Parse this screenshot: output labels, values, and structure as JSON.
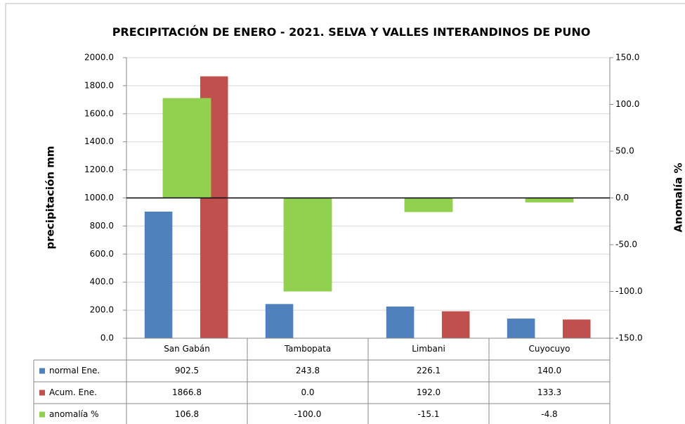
{
  "chart_data": {
    "type": "bar",
    "title": "PRECIPITACIÓN DE ENERO - 2021. SELVA Y VALLES INTERANDINOS DE PUNO",
    "y_label": "precipitación mm",
    "y2_label": "Anomalía %",
    "categories": [
      "San Gabán",
      "Tambopata",
      "Limbani",
      "Cuyocuyo"
    ],
    "series": [
      {
        "name": "normal Ene.",
        "color": "#4f81bd",
        "values": [
          902.5,
          243.8,
          226.1,
          140.0
        ],
        "value_labels": [
          "902.5",
          "243.8",
          "226.1",
          "140.0"
        ]
      },
      {
        "name": "Acum. Ene.",
        "color": "#c0504d",
        "values": [
          1866.8,
          0.0,
          192.0,
          133.3
        ],
        "value_labels": [
          "1866.8",
          "0.0",
          "192.0",
          "133.3"
        ]
      },
      {
        "name": "anomalía %",
        "color": "#92d050",
        "axis": "y2",
        "values": [
          106.8,
          -100.0,
          -15.1,
          -4.8
        ],
        "value_labels": [
          "106.8",
          "-100.0",
          "-15.1",
          "-4.8"
        ]
      }
    ],
    "ylim": [
      0,
      2000
    ],
    "yticks": [
      {
        "value": 0,
        "label": "0.0"
      },
      {
        "value": 200,
        "label": "200.0"
      },
      {
        "value": 400,
        "label": "400.0"
      },
      {
        "value": 600,
        "label": "600.0"
      },
      {
        "value": 800,
        "label": "800.0"
      },
      {
        "value": 1000,
        "label": "1000.0"
      },
      {
        "value": 1200,
        "label": "1200.0"
      },
      {
        "value": 1400,
        "label": "1400.0"
      },
      {
        "value": 1600,
        "label": "1600.0"
      },
      {
        "value": 1800,
        "label": "1800.0"
      },
      {
        "value": 2000,
        "label": "2000.0"
      }
    ],
    "y2lim": [
      -150,
      150
    ],
    "y2ticks": [
      {
        "value": -150,
        "label": "-150.0"
      },
      {
        "value": -100,
        "label": "-100.0"
      },
      {
        "value": -50,
        "label": "-50.0"
      },
      {
        "value": 0,
        "label": "0.0"
      },
      {
        "value": 50,
        "label": "50.0"
      },
      {
        "value": 100,
        "label": "100.0"
      },
      {
        "value": 150,
        "label": "150.0"
      }
    ],
    "y2_negative_color": "#ff0000",
    "grid": true,
    "data_table": true
  }
}
